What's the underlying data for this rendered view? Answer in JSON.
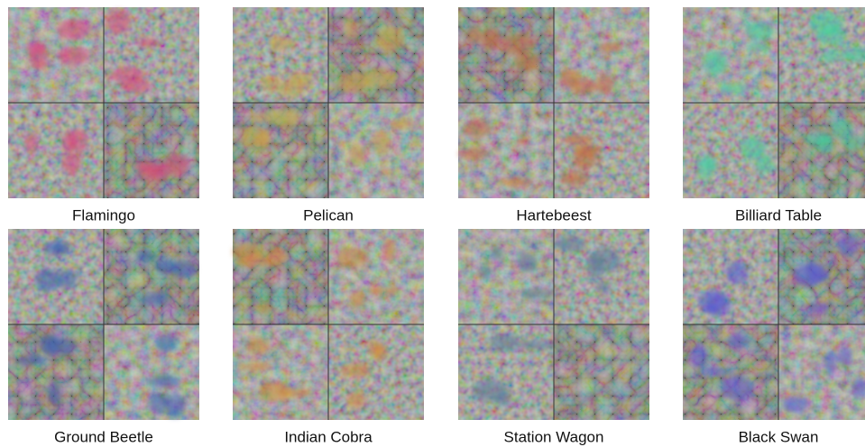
{
  "panels": [
    {
      "label": "Flamingo"
    },
    {
      "label": "Pelican"
    },
    {
      "label": "Hartebeest"
    },
    {
      "label": "Billiard Table"
    },
    {
      "label": "Ground Beetle"
    },
    {
      "label": "Indian Cobra"
    },
    {
      "label": "Station Wagon"
    },
    {
      "label": "Black Swan"
    }
  ]
}
